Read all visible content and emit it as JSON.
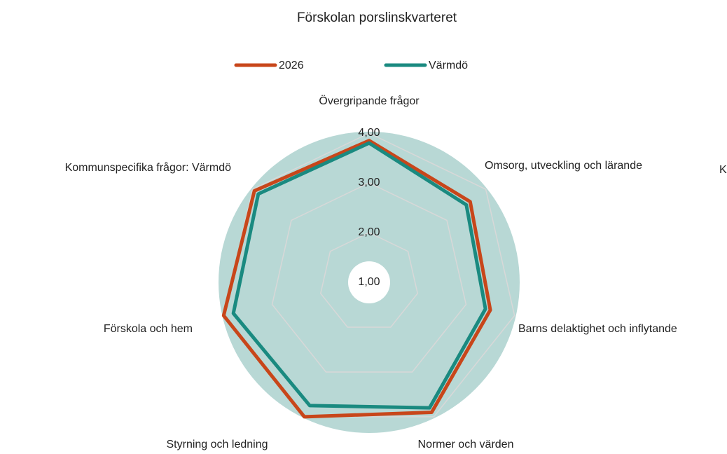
{
  "chart_data": {
    "type": "radar",
    "title": "Förskolan porslinskvarteret",
    "categories": [
      "Övergripande frågor",
      "Omsorg, utveckling och lärande",
      "Barns delaktighet och inflytande",
      "Normer och värden",
      "Styrning och ledning",
      "Förskola och hem",
      "Kommunspecifika frågor: Värmdö"
    ],
    "series": [
      {
        "name": "2026",
        "color": "#c8461a",
        "values": [
          3.85,
          3.6,
          3.5,
          3.9,
          4.0,
          4.0,
          3.95
        ]
      },
      {
        "name": "Värmdö",
        "color": "#1a8a80",
        "values": [
          3.8,
          3.5,
          3.4,
          3.8,
          3.75,
          3.8,
          3.85
        ]
      }
    ],
    "ylim": [
      1,
      4
    ],
    "yticks": [
      {
        "value": 1,
        "label": "1,00"
      },
      {
        "value": 2,
        "label": "2,00"
      },
      {
        "value": 3,
        "label": "3,00"
      },
      {
        "value": 4,
        "label": "4,00"
      }
    ],
    "grid": true,
    "legend": "top",
    "stray_label": "K"
  }
}
